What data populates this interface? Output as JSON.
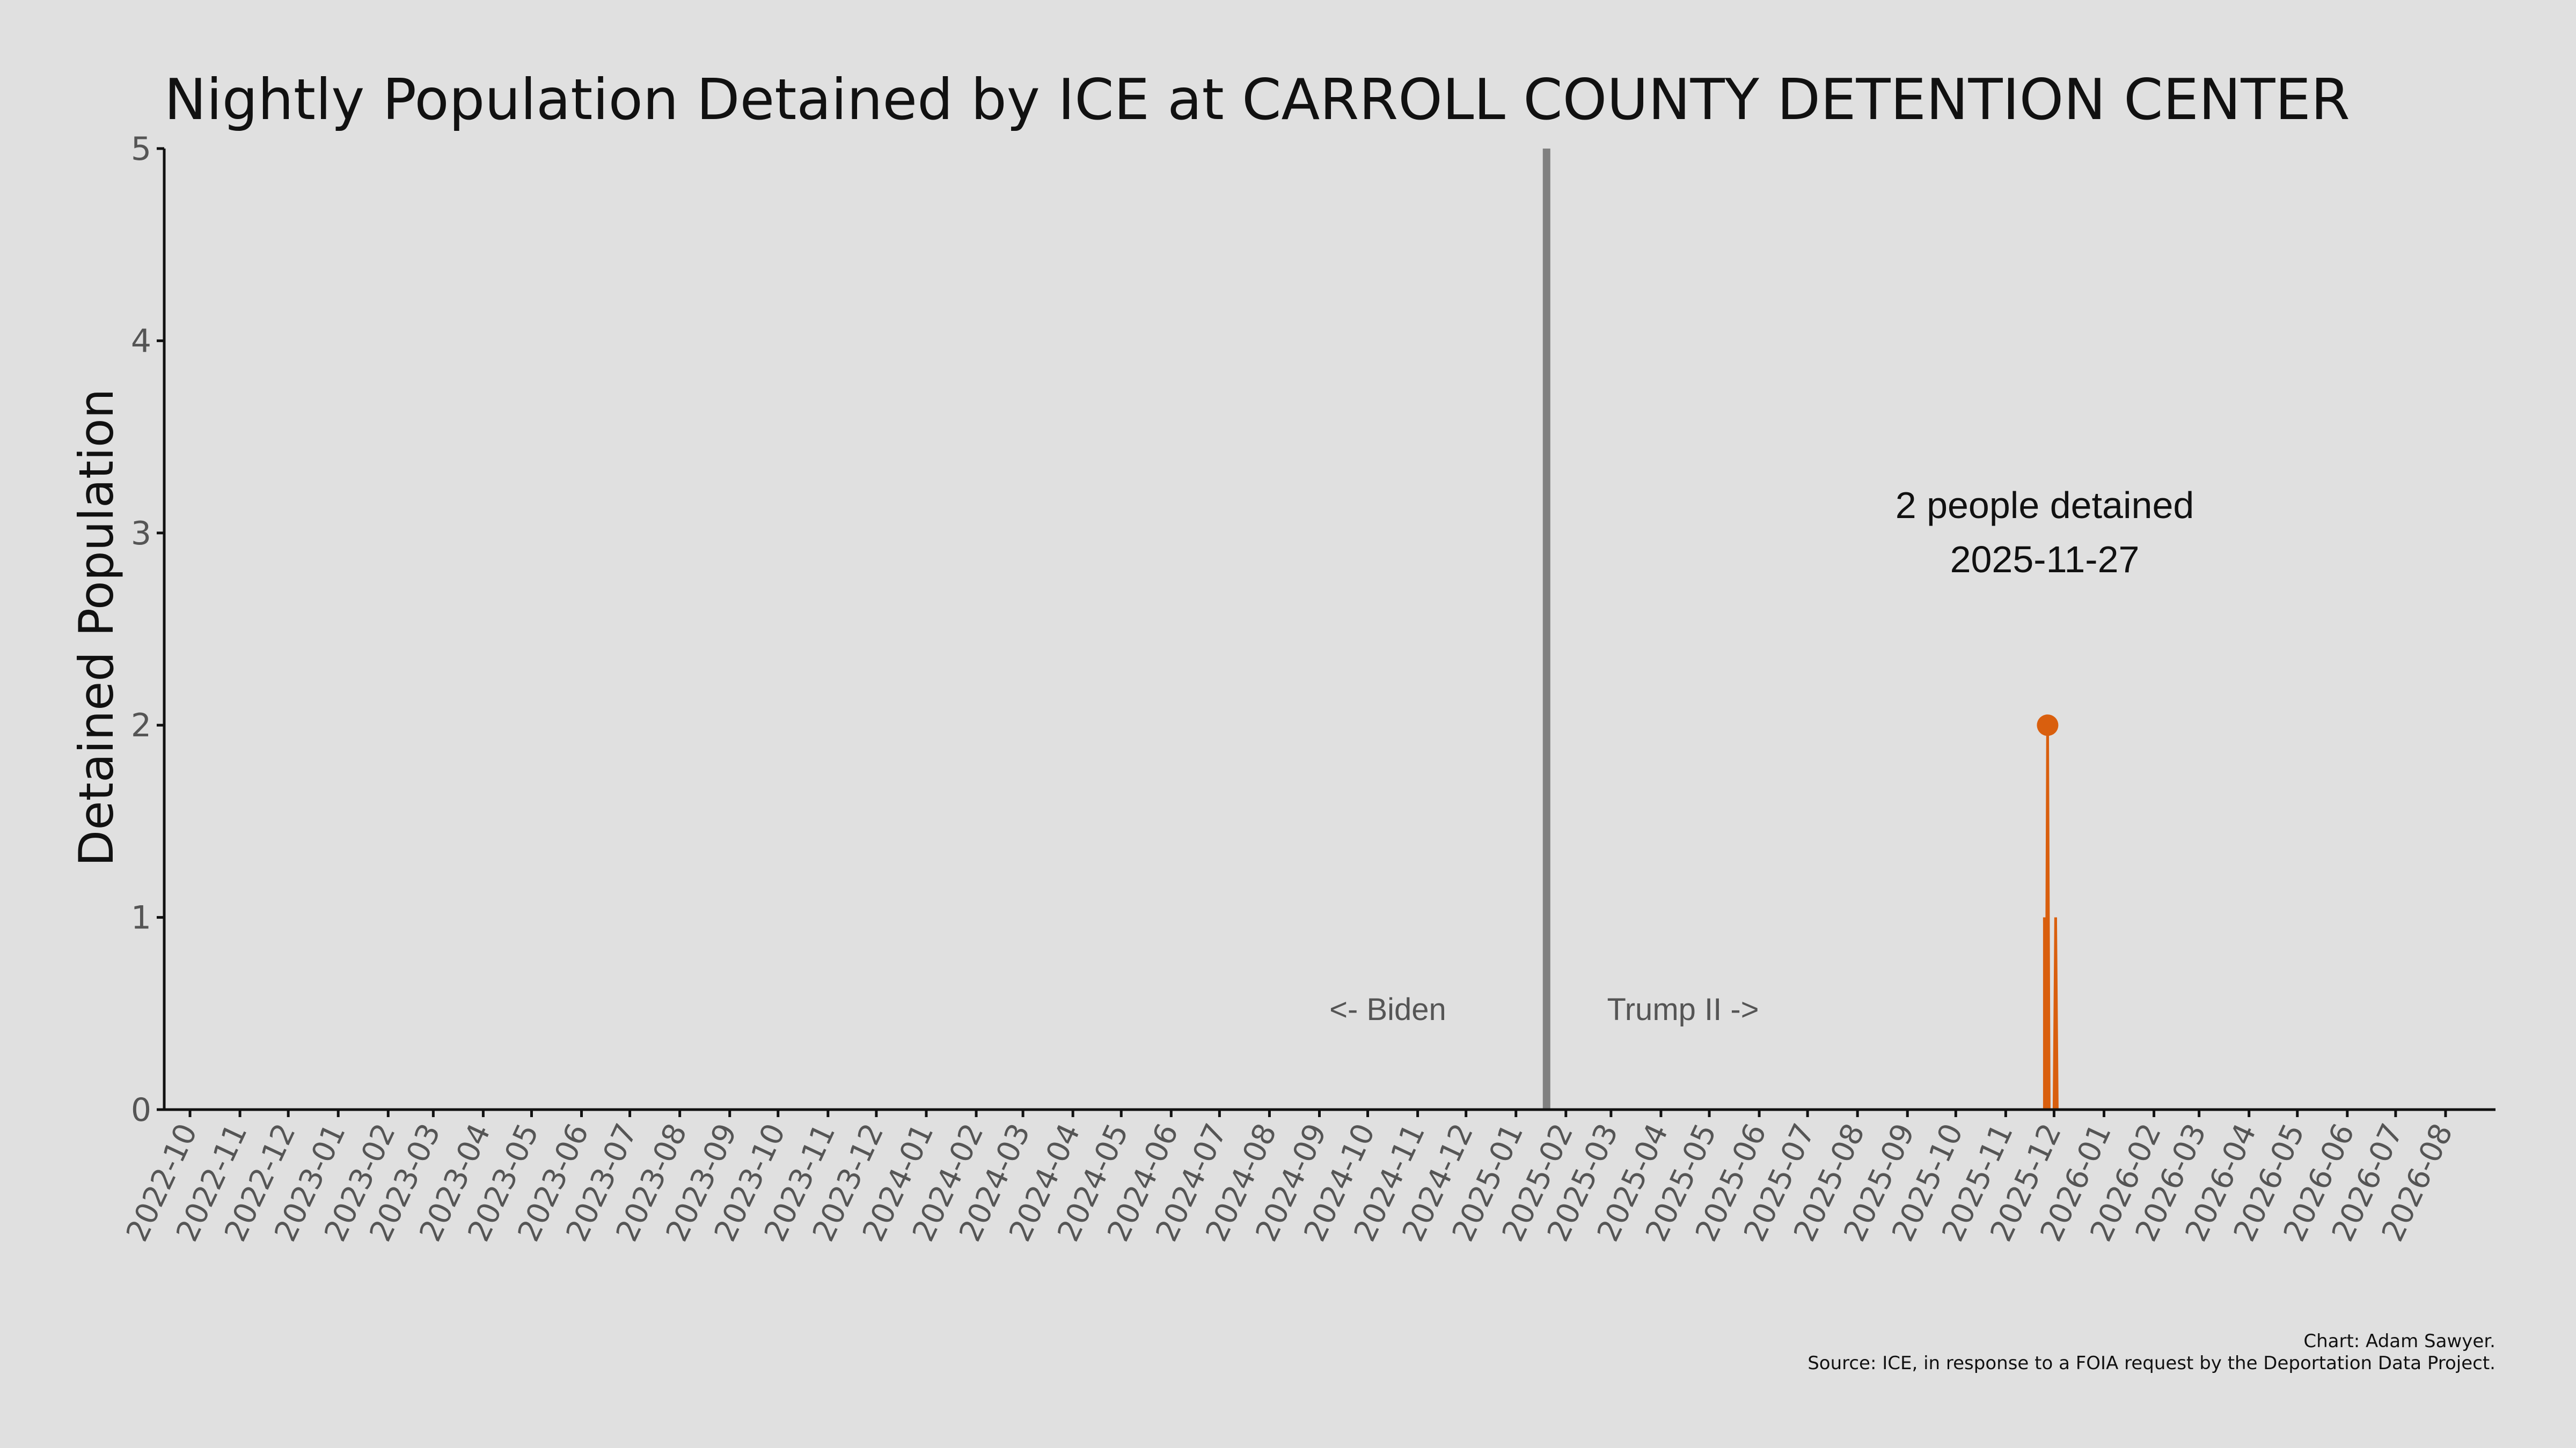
{
  "chart_data": {
    "type": "line",
    "title": "Nightly Population Detained by ICE at CARROLL COUNTY DETENTION CENTER",
    "ylabel": "Detained Population",
    "xlabel": "",
    "ylim": [
      0,
      5
    ],
    "yticks": [
      "0",
      "1",
      "2",
      "3",
      "4",
      "5"
    ],
    "xlim": [
      "2022-09-15",
      "2026-09-01"
    ],
    "xticks": [
      "2022-10",
      "2022-11",
      "2022-12",
      "2023-01",
      "2023-02",
      "2023-03",
      "2023-04",
      "2023-05",
      "2023-06",
      "2023-07",
      "2023-08",
      "2023-09",
      "2023-10",
      "2023-11",
      "2023-12",
      "2024-01",
      "2024-02",
      "2024-03",
      "2024-04",
      "2024-05",
      "2024-06",
      "2024-07",
      "2024-08",
      "2024-09",
      "2024-10",
      "2024-11",
      "2024-12",
      "2025-01",
      "2025-02",
      "2025-03",
      "2025-04",
      "2025-05",
      "2025-06",
      "2025-07",
      "2025-08",
      "2025-09",
      "2025-10",
      "2025-11",
      "2025-12",
      "2026-01",
      "2026-02",
      "2026-03",
      "2026-04",
      "2026-05",
      "2026-06",
      "2026-07",
      "2026-08"
    ],
    "series": [
      {
        "color": "#d95f0e",
        "points": [
          {
            "x": "2025-11-25",
            "y": 1
          },
          {
            "x": "2025-11-26",
            "y": 0
          },
          {
            "x": "2025-11-27",
            "y": 2
          },
          {
            "x": "2025-11-28",
            "y": 0
          },
          {
            "x": "2025-12-01",
            "y": 0
          },
          {
            "x": "2025-12-02",
            "y": 1
          },
          {
            "x": "2025-12-03",
            "y": 0
          }
        ]
      }
    ],
    "peak": {
      "x": "2025-11-27",
      "y": 2,
      "label_line1": "2 people detained",
      "label_line2": "2025-11-27"
    },
    "inauguration": {
      "x": "2025-01-20",
      "color": "#808080"
    },
    "annotations": {
      "left": "<- Biden",
      "right": "Trump II ->"
    },
    "grid": false
  },
  "credits": {
    "line1": "Chart: Adam Sawyer.",
    "line2": "Source: ICE, in response to a FOIA request by the Deportation Data Project."
  },
  "colors": {
    "background": "#e0e0e0",
    "series": "#d95f0e",
    "divider": "#808080"
  }
}
